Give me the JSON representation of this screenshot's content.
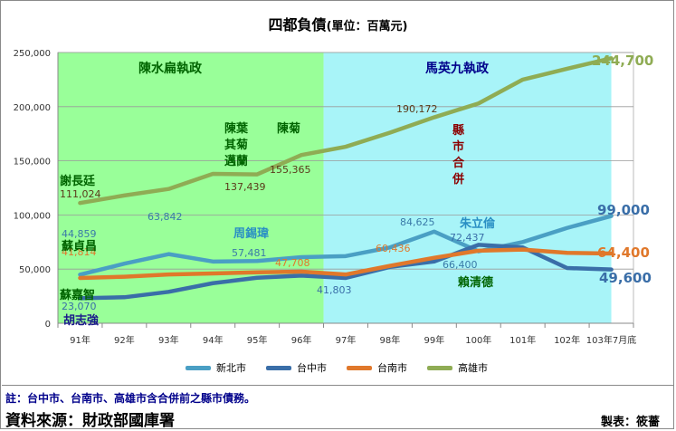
{
  "title": "四都負債",
  "title_unit": "(單位：百萬元)",
  "chart_data": {
    "type": "line",
    "categories": [
      "91年",
      "92年",
      "93年",
      "94年",
      "95年",
      "96年",
      "97年",
      "98年",
      "99年",
      "100年",
      "101年",
      "102年",
      "103年7月底"
    ],
    "ylim": [
      0,
      250000
    ],
    "yticks": [
      0,
      50000,
      100000,
      150000,
      200000,
      250000
    ],
    "ytick_labels": [
      "0",
      "50,000",
      "100,000",
      "150,000",
      "200,000",
      "250,000"
    ],
    "grid": true,
    "legend_position": "bottom",
    "series": [
      {
        "name": "新北市",
        "color": "#4a9fc4",
        "values": [
          44859,
          55000,
          63842,
          57000,
          57481,
          61000,
          62000,
          70000,
          84625,
          66400,
          75000,
          88000,
          99000
        ]
      },
      {
        "name": "台中市",
        "color": "#3a6ea8",
        "values": [
          23070,
          24000,
          29000,
          37000,
          42000,
          44000,
          41803,
          52000,
          57000,
          72437,
          70000,
          51000,
          49600
        ]
      },
      {
        "name": "台南市",
        "color": "#e0782b",
        "values": [
          41814,
          43000,
          45000,
          46000,
          47000,
          47708,
          45000,
          53000,
          60436,
          67000,
          68000,
          65000,
          64400
        ]
      },
      {
        "name": "高雄市",
        "color": "#8fac54",
        "values": [
          111024,
          118000,
          124000,
          138000,
          137439,
          155365,
          163000,
          176000,
          190172,
          203000,
          225000,
          235000,
          244700
        ]
      }
    ],
    "regions": [
      {
        "label": "陳水扁執政",
        "from": 0,
        "to": 6,
        "color": "#99ff99"
      },
      {
        "label": "馬英九執政",
        "from": 6,
        "to": 12.5,
        "color": "#a8f4f8"
      }
    ],
    "value_labels": [
      {
        "text": "111,024",
        "color": "#5a3a1a"
      },
      {
        "text": "137,439",
        "color": "#5a3a1a"
      },
      {
        "text": "155,365",
        "color": "#5a3a1a"
      },
      {
        "text": "190,172",
        "color": "#5a3a1a"
      },
      {
        "text": "244,700",
        "color": "#8fac54"
      },
      {
        "text": "44,859",
        "color": "#3a7aa8"
      },
      {
        "text": "63,842",
        "color": "#3a7aa8"
      },
      {
        "text": "57,481",
        "color": "#3a7aa8"
      },
      {
        "text": "84,625",
        "color": "#3a7aa8"
      },
      {
        "text": "66,400",
        "color": "#3a7aa8"
      },
      {
        "text": "99,000",
        "color": "#3a6ea8"
      },
      {
        "text": "72,437",
        "color": "#3a6ea8"
      },
      {
        "text": "41,814",
        "color": "#e0782b"
      },
      {
        "text": "47,708",
        "color": "#e0782b"
      },
      {
        "text": "60,436",
        "color": "#e0782b"
      },
      {
        "text": "64,400",
        "color": "#e0782b"
      },
      {
        "text": "23,070",
        "color": "#3a6ea8"
      },
      {
        "text": "41,803",
        "color": "#3a6ea8"
      },
      {
        "text": "49,600",
        "color": "#3a6ea8"
      }
    ],
    "annotations": [
      {
        "text": "謝長廷",
        "color": "#006400"
      },
      {
        "text": "陳菊",
        "color": "#006400"
      },
      {
        "text": "陳葉其菊邁蘭",
        "color": "#006400"
      },
      {
        "text": "蘇貞昌",
        "color": "#006400"
      },
      {
        "text": "蘇嘉智",
        "color": "#006400"
      },
      {
        "text": "胡志強",
        "color": "#1a1a8b"
      },
      {
        "text": "周錫瑋",
        "color": "#2a8fc4"
      },
      {
        "text": "縣市合併",
        "color": "#8b0000"
      },
      {
        "text": "朱立倫",
        "color": "#2a8fc4"
      },
      {
        "text": "賴清德",
        "color": "#006400"
      }
    ]
  },
  "note": "註：台中市、台南市、高雄市含合併前之縣市債務。",
  "source": "資料來源：財政部國庫署",
  "maker": "製表：筱薔"
}
